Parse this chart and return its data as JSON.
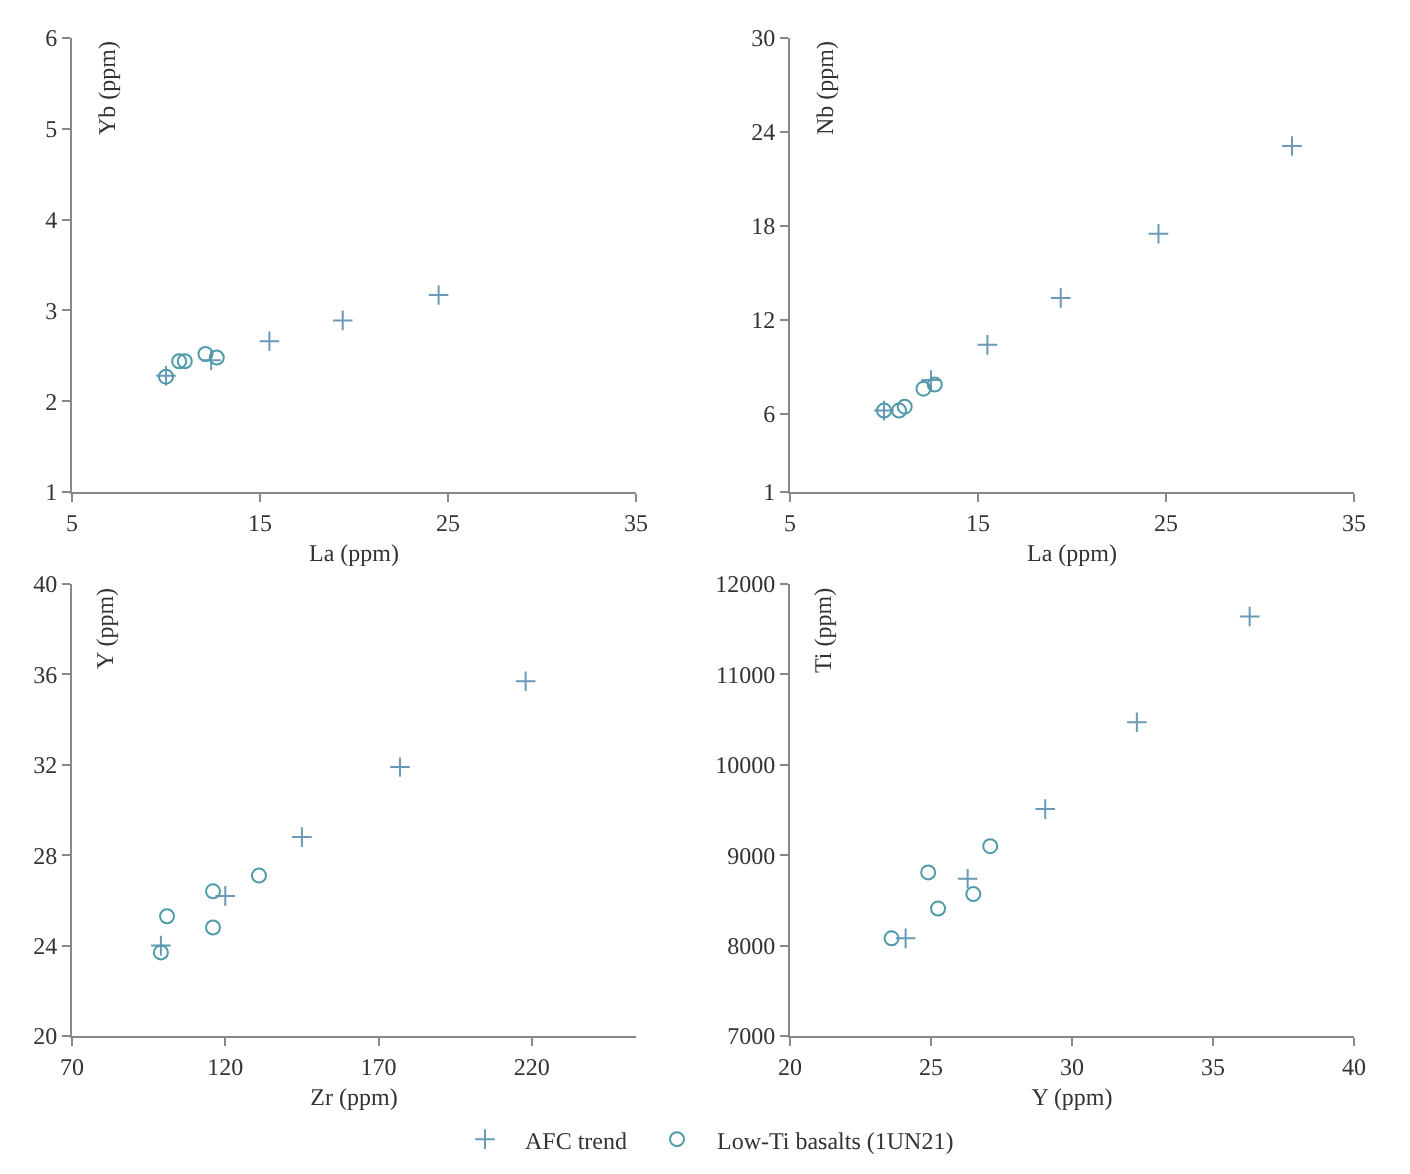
{
  "chart_data": [
    {
      "type": "scatter",
      "xlabel": "La (ppm)",
      "ylabel": "Yb (ppm)",
      "xlim": [
        5,
        35
      ],
      "xticks": [
        5,
        15,
        25,
        35
      ],
      "ylim": [
        1,
        6
      ],
      "yticks": [
        1,
        2,
        3,
        4,
        5,
        6
      ],
      "grid": false,
      "legend": "bottom",
      "series": [
        {
          "name": "AFC trend",
          "color": "#6a9ab8",
          "marker": "cross",
          "x": [
            10,
            12.4,
            15.5,
            19.4,
            24.5
          ],
          "values": [
            2.28,
            2.45,
            2.66,
            2.89,
            3.17
          ]
        },
        {
          "name": "Low-Ti basalts (1UN21)",
          "color": "#4f9aa8",
          "marker": "circle",
          "x": [
            10,
            10.7,
            11,
            12.1,
            12.7
          ],
          "values": [
            2.27,
            2.44,
            2.44,
            2.52,
            2.48
          ]
        }
      ]
    },
    {
      "type": "scatter",
      "xlabel": "La (ppm)",
      "ylabel": "Nb (ppm)",
      "xlim": [
        5,
        35
      ],
      "xticks": [
        5,
        15,
        25,
        35
      ],
      "ylim": [
        1,
        30
      ],
      "yticks": [
        1,
        6,
        12,
        18,
        24,
        30
      ],
      "grid": false,
      "series": [
        {
          "name": "AFC trend",
          "color": "#6a9ab8",
          "marker": "cross",
          "x": [
            10,
            12.5,
            15.5,
            19.4,
            24.6,
            31.7
          ],
          "values": [
            6.2,
            8.15,
            10.4,
            13.4,
            17.5,
            23.1
          ]
        },
        {
          "name": "Low-Ti basalts (1UN21)",
          "color": "#4f9aa8",
          "marker": "circle",
          "x": [
            10,
            10.8,
            11.1,
            12.1,
            12.7
          ],
          "values": [
            6.2,
            6.2,
            6.45,
            7.6,
            7.86
          ]
        }
      ]
    },
    {
      "type": "scatter",
      "xlabel": "Zr (ppm)",
      "ylabel": "Y (ppm)",
      "xlim": [
        70,
        254
      ],
      "xticks": [
        70,
        120,
        170,
        220
      ],
      "ylim": [
        20,
        40
      ],
      "yticks": [
        20,
        24,
        28,
        32,
        36,
        40
      ],
      "grid": false,
      "series": [
        {
          "name": "AFC trend",
          "color": "#6a9ab8",
          "marker": "cross",
          "x": [
            99,
            120,
            145,
            177,
            218
          ],
          "values": [
            24,
            26.2,
            28.8,
            31.9,
            35.7
          ]
        },
        {
          "name": "Low-Ti basalts (1UN21)",
          "color": "#4f9aa8",
          "marker": "circle",
          "x": [
            99,
            101,
            116,
            116,
            131
          ],
          "values": [
            23.7,
            25.3,
            26.4,
            24.8,
            27.1
          ]
        }
      ]
    },
    {
      "type": "scatter",
      "xlabel": "Y (ppm)",
      "ylabel": "Ti (ppm)",
      "xlim": [
        20,
        40
      ],
      "xticks": [
        20,
        25,
        30,
        35,
        40
      ],
      "ylim": [
        7000,
        12000
      ],
      "yticks": [
        7000,
        8000,
        9000,
        10000,
        11000,
        12000
      ],
      "grid": false,
      "series": [
        {
          "name": "AFC trend",
          "color": "#6a9ab8",
          "marker": "cross",
          "x": [
            24.1,
            26.3,
            29.05,
            32.3,
            36.3
          ],
          "values": [
            8080,
            8740,
            9510,
            10470,
            11640
          ]
        },
        {
          "name": "Low-Ti basalts (1UN21)",
          "color": "#4f9aa8",
          "marker": "circle",
          "x": [
            23.6,
            24.9,
            25.25,
            26.5,
            27.1
          ],
          "values": [
            8080,
            8810,
            8410,
            8570,
            9100
          ]
        }
      ]
    }
  ]
}
